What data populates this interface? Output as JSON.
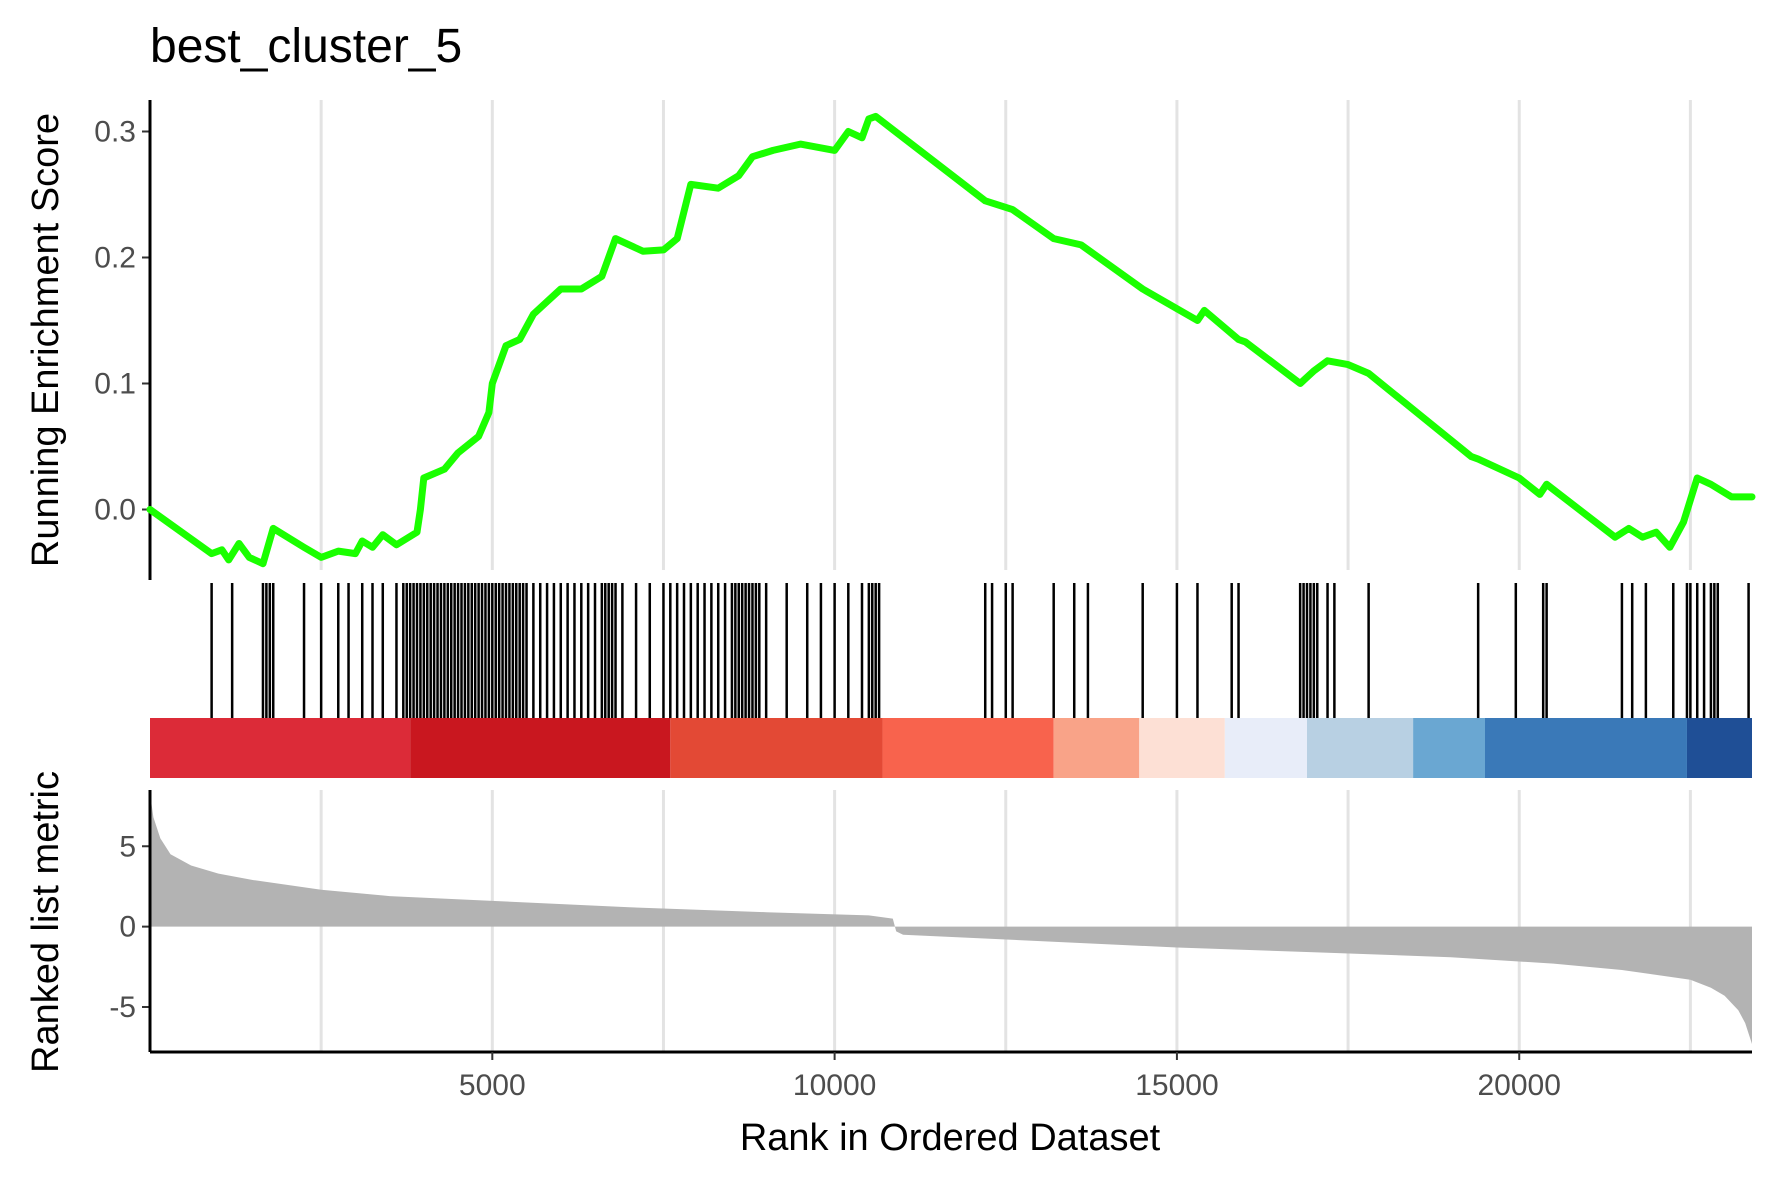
{
  "chart_data": {
    "type": "line",
    "title": "best_cluster_5",
    "xlabel": "Rank in Ordered Dataset",
    "x_ticks": [
      5000,
      10000,
      15000,
      20000
    ],
    "x_tick_labels": [
      "5000",
      "10000",
      "15000",
      "20000"
    ],
    "xlim": [
      0,
      23400
    ],
    "grid": "vertical major lines",
    "running_es": {
      "ylabel": "Running Enrichment Score",
      "ylim": [
        -0.048,
        0.325
      ],
      "y_ticks": [
        0.0,
        0.1,
        0.2,
        0.3
      ],
      "y_tick_labels": [
        "0.0",
        "0.1",
        "0.2",
        "0.3"
      ],
      "color": "#1aff00",
      "x": [
        0,
        900,
        1050,
        1150,
        1300,
        1450,
        1650,
        1800,
        2250,
        2500,
        2750,
        3000,
        3100,
        3250,
        3400,
        3600,
        3900,
        3950,
        4000,
        4300,
        4500,
        4800,
        4950,
        5000,
        5200,
        5400,
        5600,
        5800,
        6000,
        6300,
        6600,
        6800,
        7200,
        7500,
        7700,
        7900,
        8300,
        8600,
        8800,
        9100,
        9500,
        10000,
        10200,
        10400,
        10500,
        10600,
        12200,
        12600,
        13200,
        13600,
        14500,
        15300,
        15400,
        15900,
        16000,
        16800,
        17000,
        17200,
        17500,
        17800,
        19300,
        19400,
        20000,
        20300,
        20400,
        21400,
        21600,
        21800,
        22000,
        22200,
        22400,
        22600,
        22800,
        23100,
        23400
      ],
      "y": [
        0.0,
        -0.035,
        -0.032,
        -0.04,
        -0.027,
        -0.038,
        -0.043,
        -0.015,
        -0.03,
        -0.038,
        -0.033,
        -0.035,
        -0.025,
        -0.03,
        -0.02,
        -0.028,
        -0.018,
        0.0,
        0.025,
        0.032,
        0.045,
        0.058,
        0.077,
        0.1,
        0.13,
        0.135,
        0.155,
        0.165,
        0.175,
        0.175,
        0.185,
        0.215,
        0.205,
        0.206,
        0.215,
        0.258,
        0.255,
        0.265,
        0.28,
        0.285,
        0.29,
        0.285,
        0.3,
        0.295,
        0.31,
        0.312,
        0.245,
        0.238,
        0.215,
        0.21,
        0.175,
        0.15,
        0.158,
        0.135,
        0.133,
        0.1,
        0.11,
        0.118,
        0.115,
        0.108,
        0.042,
        0.04,
        0.025,
        0.012,
        0.02,
        -0.022,
        -0.015,
        -0.022,
        -0.018,
        -0.03,
        -0.01,
        0.025,
        0.02,
        0.01,
        0.01
      ]
    },
    "gene_hits": {
      "x": [
        900,
        1200,
        1650,
        1700,
        1750,
        1800,
        2250,
        2500,
        2750,
        2900,
        3100,
        3250,
        3400,
        3600,
        3700,
        3750,
        3800,
        3850,
        3900,
        3950,
        4000,
        4050,
        4100,
        4150,
        4200,
        4250,
        4300,
        4350,
        4400,
        4450,
        4500,
        4550,
        4600,
        4650,
        4700,
        4750,
        4800,
        4850,
        4900,
        4950,
        5000,
        5050,
        5100,
        5150,
        5200,
        5250,
        5300,
        5350,
        5400,
        5450,
        5500,
        5600,
        5700,
        5800,
        5900,
        6000,
        6100,
        6200,
        6300,
        6400,
        6500,
        6600,
        6650,
        6700,
        6750,
        6800,
        6900,
        7100,
        7300,
        7500,
        7600,
        7700,
        7800,
        7900,
        8000,
        8100,
        8200,
        8300,
        8400,
        8500,
        8550,
        8600,
        8650,
        8700,
        8750,
        8800,
        8850,
        8900,
        9000,
        9300,
        9600,
        9800,
        10000,
        10200,
        10400,
        10500,
        10550,
        10600,
        10650,
        12200,
        12300,
        12500,
        12600,
        13200,
        13500,
        13700,
        14500,
        15000,
        15300,
        15800,
        15900,
        16800,
        16850,
        16900,
        16950,
        17000,
        17050,
        17200,
        17300,
        17800,
        19400,
        19950,
        20350,
        20400,
        21500,
        21650,
        21850,
        22250,
        22450,
        22500,
        22600,
        22700,
        22800,
        22850,
        22900,
        23350
      ]
    },
    "color_bar": {
      "bins": [
        {
          "start": 0,
          "end": 3800,
          "color": "#dc2b38"
        },
        {
          "start": 3800,
          "end": 7600,
          "color": "#c9171f"
        },
        {
          "start": 7600,
          "end": 10700,
          "color": "#e34935"
        },
        {
          "start": 10700,
          "end": 13200,
          "color": "#f8634d"
        },
        {
          "start": 13200,
          "end": 14450,
          "color": "#f9a388"
        },
        {
          "start": 14450,
          "end": 15700,
          "color": "#fde0d5"
        },
        {
          "start": 15700,
          "end": 16900,
          "color": "#e8edf9"
        },
        {
          "start": 16900,
          "end": 18450,
          "color": "#b8d0e3"
        },
        {
          "start": 18450,
          "end": 19500,
          "color": "#6aa7d2"
        },
        {
          "start": 19500,
          "end": 22450,
          "color": "#3a79b8"
        },
        {
          "start": 22450,
          "end": 23400,
          "color": "#1f4f96"
        }
      ]
    },
    "ranked_metric": {
      "ylabel": "Ranked list metric",
      "ylim": [
        -7.8,
        8.5
      ],
      "y_ticks": [
        -5,
        0,
        5
      ],
      "y_tick_labels": [
        "-5",
        "0",
        "5"
      ],
      "fill_color": "#b3b3b3",
      "x": [
        0,
        50,
        150,
        300,
        600,
        1000,
        1500,
        2500,
        3500,
        5000,
        7000,
        9000,
        10500,
        10850,
        10900,
        11000,
        13000,
        15000,
        17000,
        19000,
        20500,
        21500,
        22500,
        22800,
        23000,
        23200,
        23300,
        23400
      ],
      "y": [
        8.3,
        6.8,
        5.5,
        4.5,
        3.8,
        3.3,
        2.9,
        2.3,
        1.9,
        1.6,
        1.2,
        0.9,
        0.7,
        0.5,
        -0.3,
        -0.5,
        -0.9,
        -1.3,
        -1.6,
        -1.9,
        -2.3,
        -2.7,
        -3.3,
        -3.8,
        -4.3,
        -5.2,
        -6.0,
        -7.3
      ]
    }
  }
}
